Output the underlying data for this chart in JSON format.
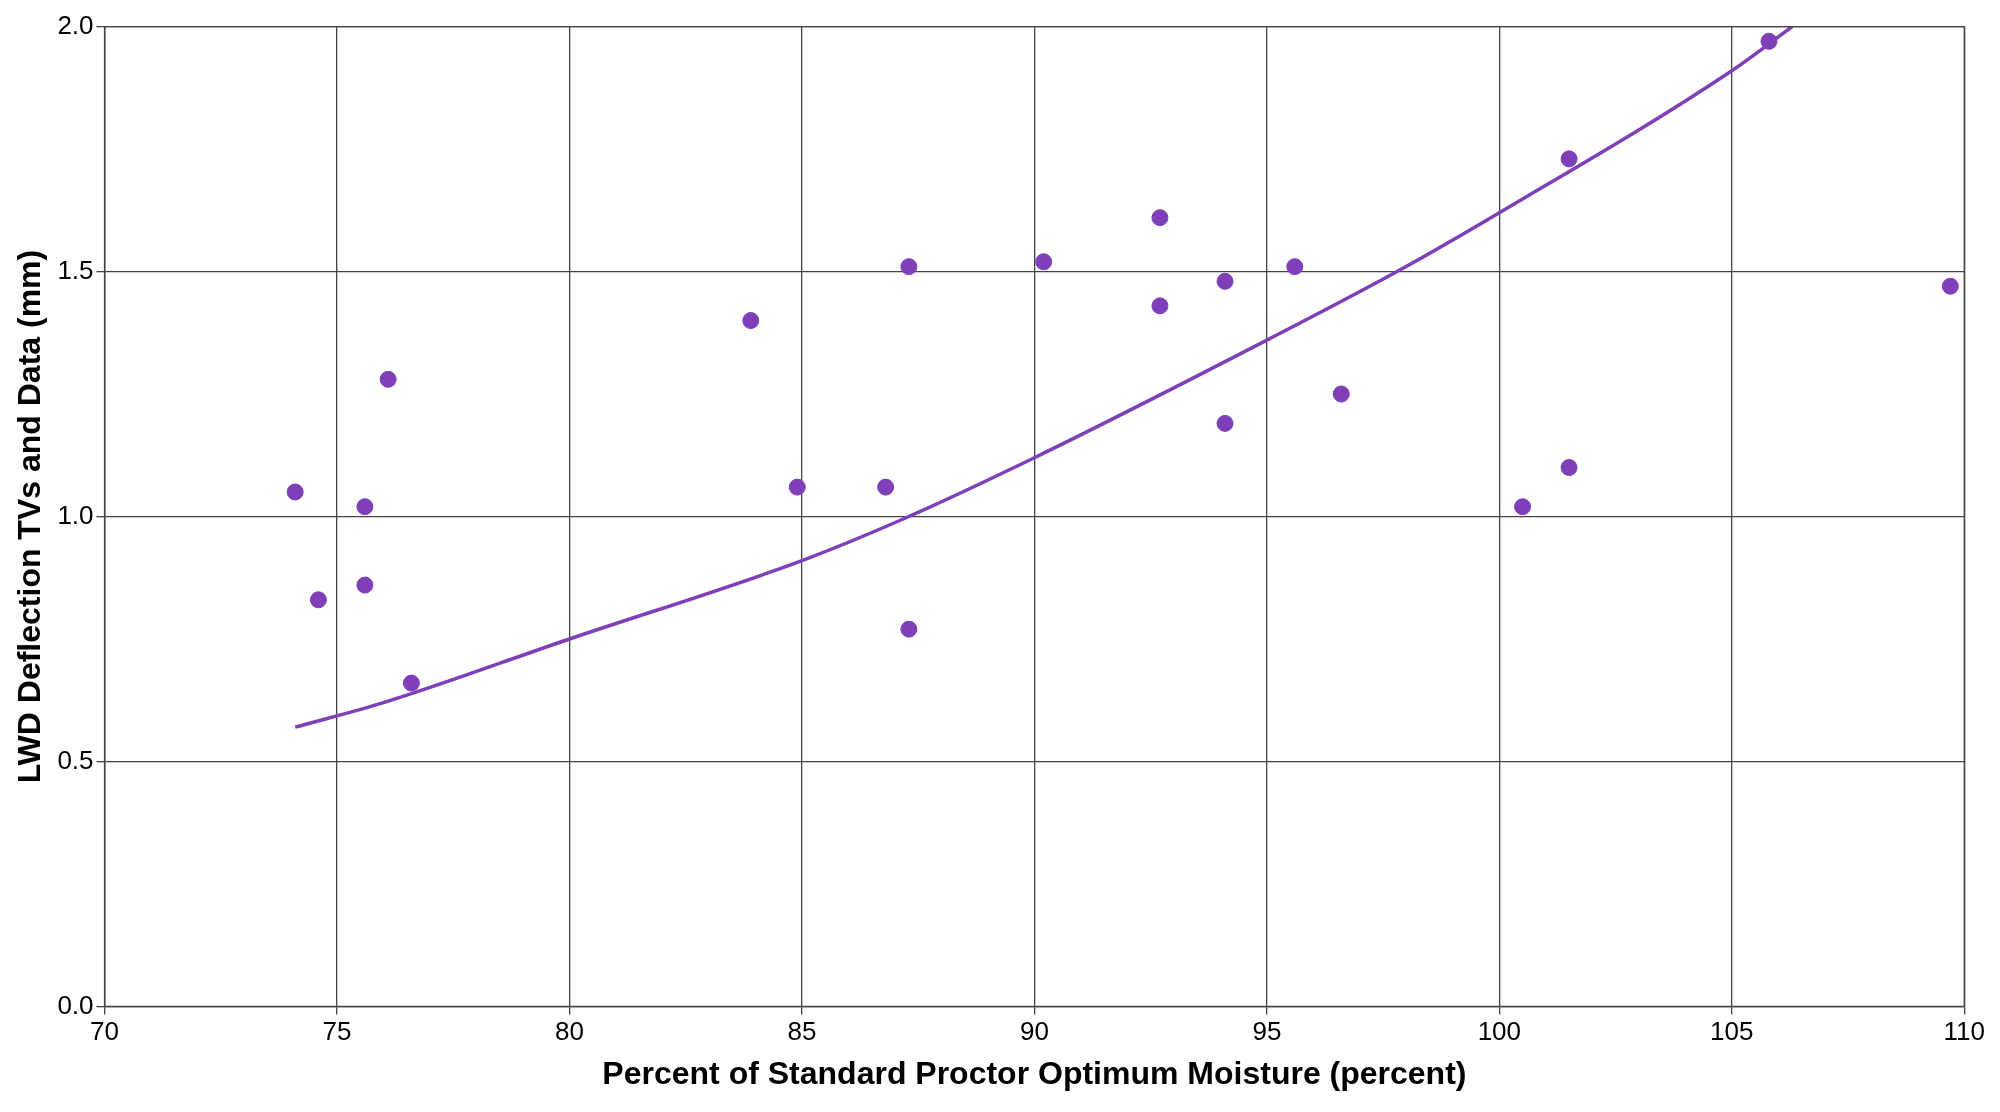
{
  "chart_data": {
    "type": "scatter",
    "xlabel": "Percent of Standard Proctor Optimum Moisture (percent)",
    "ylabel": "LWD Deflection TVs and Data (mm)",
    "xlim": [
      70,
      110
    ],
    "xticks": [
      70,
      75,
      80,
      85,
      90,
      95,
      100,
      105,
      110
    ],
    "ylim": [
      0,
      2
    ],
    "yticks": [
      {
        "value": 0,
        "label": "0.0"
      },
      {
        "value": 0.5,
        "label": "0.5"
      },
      {
        "value": 1,
        "label": "1.0"
      },
      {
        "value": 1.5,
        "label": "1.5"
      },
      {
        "value": 2,
        "label": "2.0"
      }
    ],
    "grid": true,
    "legend": false,
    "series": [
      {
        "type": "scatter",
        "marker": "circle",
        "color": "#7e3fb8",
        "x": [
          74.1,
          74.6,
          75.6,
          75.6,
          76.1,
          76.6,
          83.9,
          84.9,
          86.8,
          87.3,
          87.3,
          90.2,
          92.7,
          92.7,
          94.1,
          94.1,
          95.6,
          96.6,
          100.5,
          101.5,
          101.5,
          105.8,
          109.7
        ],
        "values": [
          1.05,
          0.83,
          1.02,
          0.86,
          1.28,
          0.66,
          1.4,
          1.06,
          1.06,
          1.51,
          0.77,
          1.52,
          1.61,
          1.43,
          1.48,
          1.19,
          1.51,
          1.25,
          1.02,
          1.1,
          1.73,
          1.97,
          1.47
        ]
      },
      {
        "type": "line",
        "marker": "none",
        "color": "#7e3fb8",
        "line_style": "solid",
        "x": [
          74.1,
          76,
          80,
          85,
          87.3,
          90,
          95,
          97.8,
          100,
          105,
          106.3
        ],
        "values": [
          0.57,
          0.62,
          0.75,
          0.91,
          1.0,
          1.12,
          1.36,
          1.5,
          1.62,
          1.91,
          2.0
        ]
      }
    ]
  }
}
